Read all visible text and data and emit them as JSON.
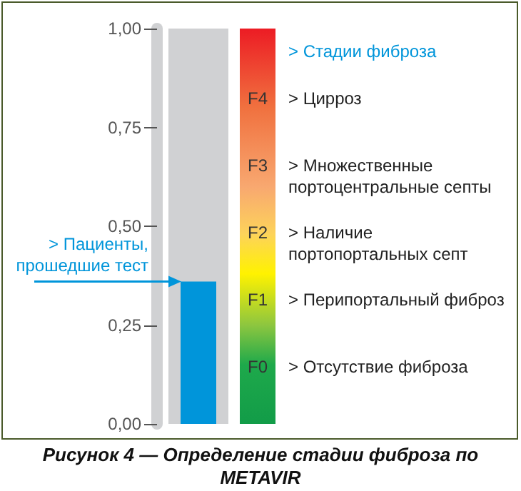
{
  "chart_data": {
    "type": "bar",
    "title": "Рисунок 4 — Определение стадии фиброза по METAVIR",
    "categories": [
      null
    ],
    "values": [
      0.36
    ],
    "color": "#0095da",
    "ylim": [
      0,
      1
    ],
    "yticks": [
      {
        "value": 0,
        "label": "0,00"
      },
      {
        "value": 0.25,
        "label": "0,25"
      },
      {
        "value": 0.5,
        "label": "0,50"
      },
      {
        "value": 0.75,
        "label": "0,75"
      },
      {
        "value": 1,
        "label": "1,00"
      }
    ],
    "grid": false,
    "ref_lines": [
      {
        "axis": "y",
        "value": 0.36,
        "label": "> Пациенты, прошедшие тест",
        "color": "#0095da"
      }
    ],
    "annotations": [
      "> Стадии фиброза",
      "F4",
      "> Цирроз",
      "F3",
      "> Множественные портоцентральные септы",
      "F2",
      "> Наличие портопортальных септ",
      "F1",
      "> Перипортальный фиброз",
      "F0",
      "> Отсутствие фиброза"
    ]
  }
}
